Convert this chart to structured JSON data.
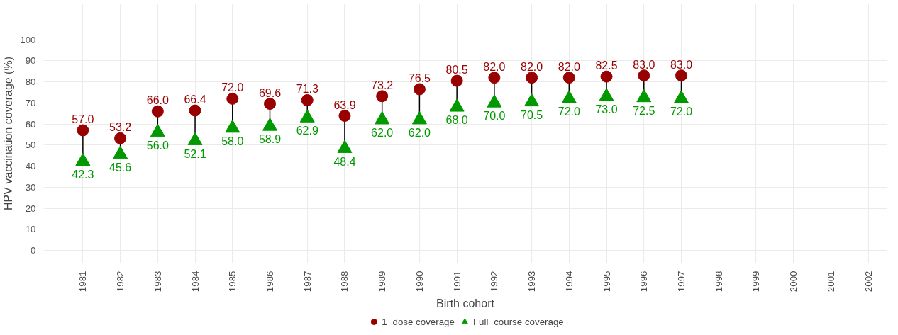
{
  "chart_data": {
    "type": "scatter",
    "xlabel": "Birth cohort",
    "ylabel": "HPV vaccination coverage (%)",
    "categories": [
      "1981",
      "1982",
      "1983",
      "1984",
      "1985",
      "1986",
      "1987",
      "1988",
      "1989",
      "1990",
      "1991",
      "1992",
      "1993",
      "1994",
      "1995",
      "1996",
      "1997",
      "1998",
      "1999",
      "2000",
      "2001",
      "2002"
    ],
    "series": [
      {
        "name": "1−dose coverage",
        "color": "#990000",
        "marker": "circle",
        "values": [
          57.0,
          53.2,
          66.0,
          66.4,
          72.0,
          69.6,
          71.3,
          63.9,
          73.2,
          76.5,
          80.5,
          82.0,
          82.0,
          82.0,
          82.5,
          83.0,
          83.0,
          null,
          null,
          null,
          null,
          null
        ],
        "value_labels": [
          "57.0",
          "53.2",
          "66.0",
          "66.4",
          "72.0",
          "69.6",
          "71.3",
          "63.9",
          "73.2",
          "76.5",
          "80.5",
          "82.0",
          "82.0",
          "82.0",
          "82.5",
          "83.0",
          "83.0",
          null,
          null,
          null,
          null,
          null
        ]
      },
      {
        "name": "Full−course coverage",
        "color": "#009900",
        "marker": "triangle",
        "values": [
          42.3,
          45.6,
          56.0,
          52.1,
          58.0,
          58.9,
          62.9,
          48.4,
          62.0,
          62.0,
          68.0,
          70.0,
          70.5,
          72.0,
          73.0,
          72.5,
          72.0,
          null,
          null,
          null,
          null,
          null
        ],
        "value_labels": [
          "42.3",
          "45.6",
          "56.0",
          "52.1",
          "58.0",
          "58.9",
          "62.9",
          "48.4",
          "62.0",
          "62.0",
          "68.0",
          "70.0",
          "70.5",
          "72.0",
          "73.0",
          "72.5",
          "72.0",
          null,
          null,
          null,
          null,
          null
        ]
      }
    ],
    "ylim": [
      -6,
      117
    ],
    "yticks": [
      0,
      10,
      20,
      30,
      40,
      50,
      60,
      70,
      80,
      90,
      100
    ],
    "grid": true,
    "legend": "bottom"
  }
}
